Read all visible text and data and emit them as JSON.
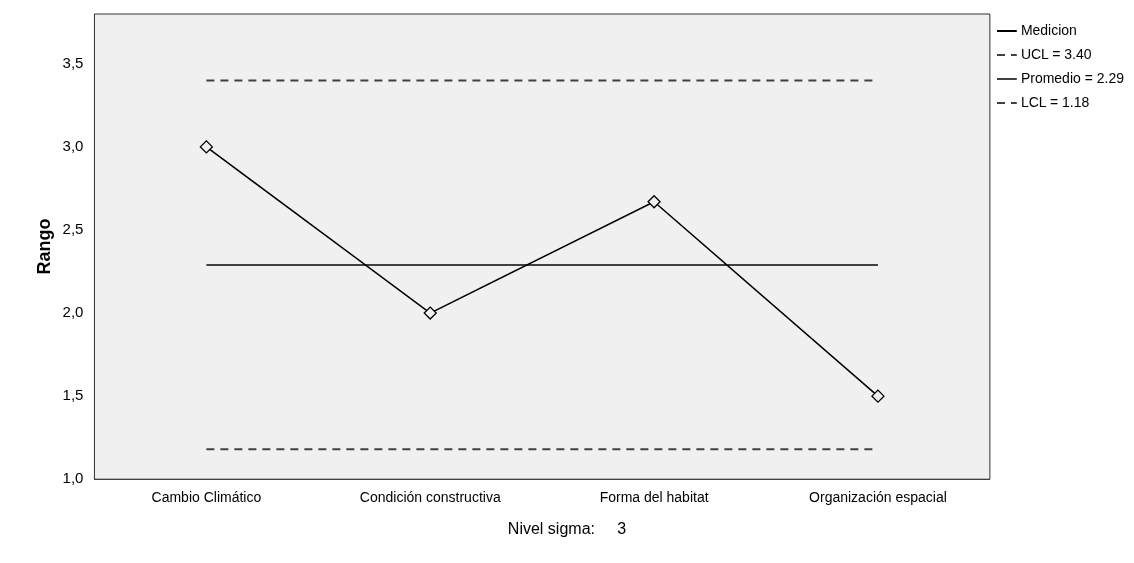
{
  "chart_data": {
    "type": "line",
    "ylabel": "Rango",
    "categories": [
      "Cambio Climático",
      "Condición constructiva",
      "Forma del habitat",
      "Organización espacial"
    ],
    "series": [
      {
        "name": "Medicion",
        "color": "#000000",
        "values": [
          3.0,
          2.0,
          2.67,
          1.5
        ]
      }
    ],
    "ylim": [
      1.0,
      3.8
    ],
    "yticks": [
      {
        "value": 1.0,
        "label": "1,0"
      },
      {
        "value": 1.5,
        "label": "1,5"
      },
      {
        "value": 2.0,
        "label": "2,0"
      },
      {
        "value": 2.5,
        "label": "2,5"
      },
      {
        "value": 3.0,
        "label": "3,0"
      },
      {
        "value": 3.5,
        "label": "3,5"
      }
    ],
    "ref_lines": [
      {
        "axis": "y",
        "value": 3.4,
        "label": "UCL = 3.40",
        "color": "#404040",
        "line_style": "dashed"
      },
      {
        "axis": "y",
        "value": 2.29,
        "label": "Promedio = 2.29",
        "color": "#404040",
        "line_style": "solid"
      },
      {
        "axis": "y",
        "value": 1.18,
        "label": "LCL = 1.18",
        "color": "#404040",
        "line_style": "dashed"
      }
    ],
    "annotations": [
      "Nivel sigma:     3"
    ],
    "marker": "diamond",
    "line_style": "solid",
    "grid": false,
    "legend": "top right"
  }
}
